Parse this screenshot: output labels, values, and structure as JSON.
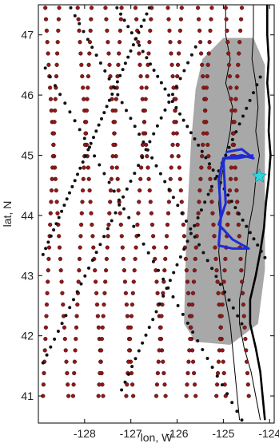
{
  "chart_data": {
    "type": "scatter",
    "xlabel": "lon, W",
    "ylabel": "lat, N",
    "xlim": [
      -129.0,
      -123.9
    ],
    "ylim": [
      40.55,
      47.5
    ],
    "xticks": [
      -128,
      -127,
      -126,
      -125,
      -124
    ],
    "yticks": [
      41,
      42,
      43,
      44,
      45,
      46,
      47
    ],
    "grid": false,
    "colors": {
      "red_points": "#8b1a1a",
      "black_points": "#111111",
      "shaded_region": "#a8a8a8",
      "blue_track": "#1f2bd6",
      "star": "#2fd4dc",
      "coast": "#000000"
    },
    "series": [
      {
        "kind": "points-red",
        "tracks": [
          [
            [
              -128.85,
              47.45
            ],
            [
              -128.35,
              41.0
            ]
          ],
          [
            [
              -128.55,
              47.45
            ],
            [
              -128.9,
              41.0
            ]
          ],
          [
            [
              -128.15,
              47.45
            ],
            [
              -127.6,
              41.0
            ]
          ],
          [
            [
              -127.85,
              47.45
            ],
            [
              -128.25,
              41.0
            ]
          ],
          [
            [
              -127.55,
              47.45
            ],
            [
              -126.95,
              41.0
            ]
          ],
          [
            [
              -127.2,
              47.45
            ],
            [
              -127.7,
              41.0
            ]
          ],
          [
            [
              -126.9,
              47.45
            ],
            [
              -126.25,
              41.0
            ]
          ],
          [
            [
              -126.55,
              47.45
            ],
            [
              -127.1,
              41.0
            ]
          ],
          [
            [
              -126.2,
              47.45
            ],
            [
              -125.6,
              41.0
            ]
          ],
          [
            [
              -125.9,
              47.45
            ],
            [
              -126.45,
              41.0
            ]
          ],
          [
            [
              -125.55,
              47.45
            ],
            [
              -124.95,
              41.0
            ]
          ],
          [
            [
              -125.25,
              47.45
            ],
            [
              -125.8,
              41.0
            ]
          ],
          [
            [
              -124.95,
              47.45
            ],
            [
              -124.45,
              41.0
            ]
          ],
          [
            [
              -124.6,
              47.45
            ],
            [
              -125.15,
              41.0
            ]
          ]
        ]
      },
      {
        "kind": "points-black",
        "tracks": [
          [
            [
              -128.85,
              46.45
            ],
            [
              -124.6,
              40.6
            ]
          ],
          [
            [
              -127.3,
              47.45
            ],
            [
              -124.1,
              43.3
            ]
          ],
          [
            [
              -128.3,
              47.45
            ],
            [
              -124.6,
              42.2
            ]
          ],
          [
            [
              -128.9,
              43.35
            ],
            [
              -126.6,
              47.45
            ]
          ],
          [
            [
              -128.9,
              41.55
            ],
            [
              -125.6,
              46.8
            ]
          ],
          [
            [
              -127.2,
              41.1
            ],
            [
              -124.2,
              46.3
            ]
          ]
        ]
      }
    ],
    "shaded_polygon": [
      [
        -125.45,
        46.6
      ],
      [
        -125.0,
        46.95
      ],
      [
        -124.35,
        46.95
      ],
      [
        -124.1,
        46.5
      ],
      [
        -124.1,
        43.1
      ],
      [
        -124.25,
        42.2
      ],
      [
        -124.85,
        41.85
      ],
      [
        -125.6,
        41.9
      ],
      [
        -125.85,
        42.2
      ],
      [
        -125.8,
        43.7
      ],
      [
        -125.7,
        45.2
      ],
      [
        -125.6,
        46.1
      ]
    ],
    "blue_track": [
      [
        -124.95,
        45.05
      ],
      [
        -124.6,
        45.1
      ],
      [
        -124.35,
        44.95
      ],
      [
        -124.6,
        45.0
      ],
      [
        -125.0,
        44.95
      ],
      [
        -125.1,
        44.6
      ],
      [
        -125.05,
        44.0
      ],
      [
        -125.1,
        43.5
      ],
      [
        -124.8,
        43.45
      ],
      [
        -124.45,
        43.45
      ],
      [
        -124.8,
        43.6
      ],
      [
        -125.1,
        43.85
      ],
      [
        -124.95,
        44.2
      ],
      [
        -125.0,
        44.95
      ],
      [
        -124.7,
        44.95
      ],
      [
        -124.35,
        45.0
      ]
    ],
    "star": [
      -124.22,
      44.65
    ],
    "coastline": [
      [
        -124.05,
        47.5
      ],
      [
        -124.05,
        47.0
      ],
      [
        -124.02,
        46.6
      ],
      [
        -124.05,
        46.2
      ],
      [
        -124.0,
        45.8
      ],
      [
        -124.02,
        45.4
      ],
      [
        -123.98,
        45.0
      ],
      [
        -124.02,
        44.6
      ],
      [
        -124.08,
        44.2
      ],
      [
        -124.12,
        43.8
      ],
      [
        -124.2,
        43.4
      ],
      [
        -124.3,
        43.0
      ],
      [
        -124.42,
        42.6
      ],
      [
        -124.42,
        42.2
      ],
      [
        -124.3,
        41.8
      ],
      [
        -124.2,
        41.4
      ],
      [
        -124.15,
        41.0
      ],
      [
        -124.1,
        40.6
      ]
    ],
    "isobath_shallow": [
      [
        -124.35,
        47.5
      ],
      [
        -124.35,
        47.0
      ],
      [
        -124.38,
        46.6
      ],
      [
        -124.3,
        46.2
      ],
      [
        -124.25,
        45.8
      ],
      [
        -124.3,
        45.4
      ],
      [
        -124.22,
        45.0
      ],
      [
        -124.3,
        44.6
      ],
      [
        -124.35,
        44.2
      ],
      [
        -124.45,
        43.8
      ],
      [
        -124.5,
        43.4
      ],
      [
        -124.55,
        43.0
      ],
      [
        -124.65,
        42.6
      ],
      [
        -124.65,
        42.2
      ],
      [
        -124.55,
        41.8
      ],
      [
        -124.4,
        41.4
      ],
      [
        -124.3,
        41.0
      ],
      [
        -124.2,
        40.6
      ]
    ],
    "isobath_deep": [
      [
        -124.95,
        47.5
      ],
      [
        -124.95,
        47.0
      ],
      [
        -124.85,
        46.6
      ],
      [
        -124.95,
        46.2
      ],
      [
        -124.8,
        45.8
      ],
      [
        -124.85,
        45.4
      ],
      [
        -124.95,
        45.0
      ],
      [
        -125.05,
        44.6
      ],
      [
        -125.1,
        44.2
      ],
      [
        -125.05,
        43.8
      ],
      [
        -125.1,
        43.4
      ],
      [
        -125.05,
        43.0
      ],
      [
        -124.95,
        42.6
      ],
      [
        -124.85,
        42.2
      ],
      [
        -124.8,
        41.8
      ],
      [
        -124.75,
        41.4
      ],
      [
        -124.7,
        41.0
      ],
      [
        -124.65,
        40.6
      ]
    ]
  }
}
